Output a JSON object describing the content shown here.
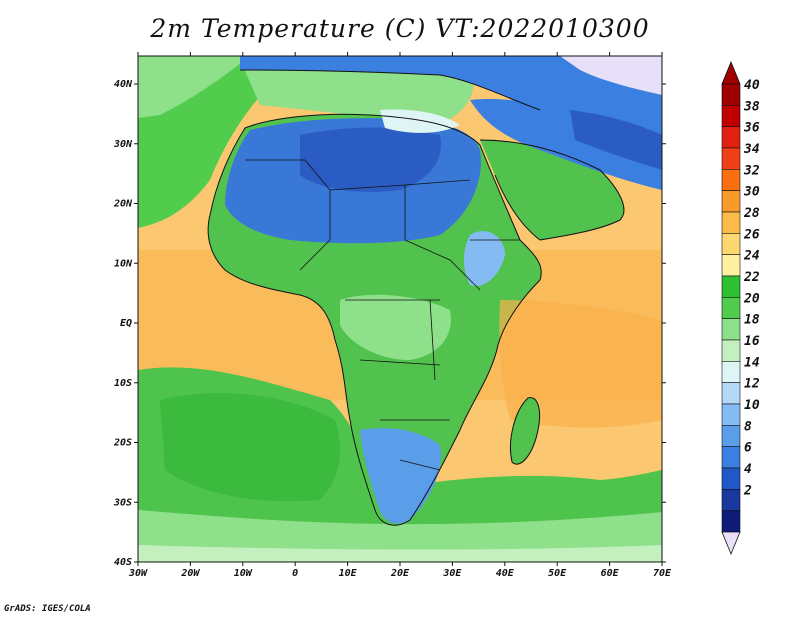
{
  "title": "2m Temperature (C) VT:2022010300",
  "credit": "GrADS: IGES/COLA",
  "x_ticks": [
    "30W",
    "20W",
    "10W",
    "0",
    "10E",
    "20E",
    "30E",
    "40E",
    "50E",
    "60E",
    "70E"
  ],
  "y_ticks": [
    "40N",
    "30N",
    "20N",
    "10N",
    "EQ",
    "10S",
    "20S",
    "30S",
    "40S"
  ],
  "colorbar": {
    "labels": [
      "40",
      "38",
      "36",
      "34",
      "32",
      "30",
      "28",
      "26",
      "24",
      "22",
      "20",
      "18",
      "16",
      "14",
      "12",
      "10",
      "8",
      "6",
      "4",
      "2"
    ],
    "colors": [
      "#a00000",
      "#c00000",
      "#e02010",
      "#f04018",
      "#f87010",
      "#fa9a28",
      "#fbbb48",
      "#fdd871",
      "#fdf0a0",
      "#2fbf32",
      "#52cc4c",
      "#8fe08a",
      "#c4f0c0",
      "#dff5f5",
      "#b4d8f8",
      "#84bbf2",
      "#5a9de8",
      "#3b7fe0",
      "#2058c8",
      "#1838a0",
      "#0c1c78"
    ],
    "top_color": "#a00000",
    "bottom_color": "#e8e0f8"
  },
  "map": {
    "ocean_color": "#fbc770",
    "tropical_ocean_color": "#f9b04a",
    "land_color": "#52c24e",
    "desert_color": "#3a78d8",
    "cold_color": "#2a5cc4",
    "southern_ocean_color": "#5ec95a",
    "high_lat_color": "#8fe08a"
  }
}
